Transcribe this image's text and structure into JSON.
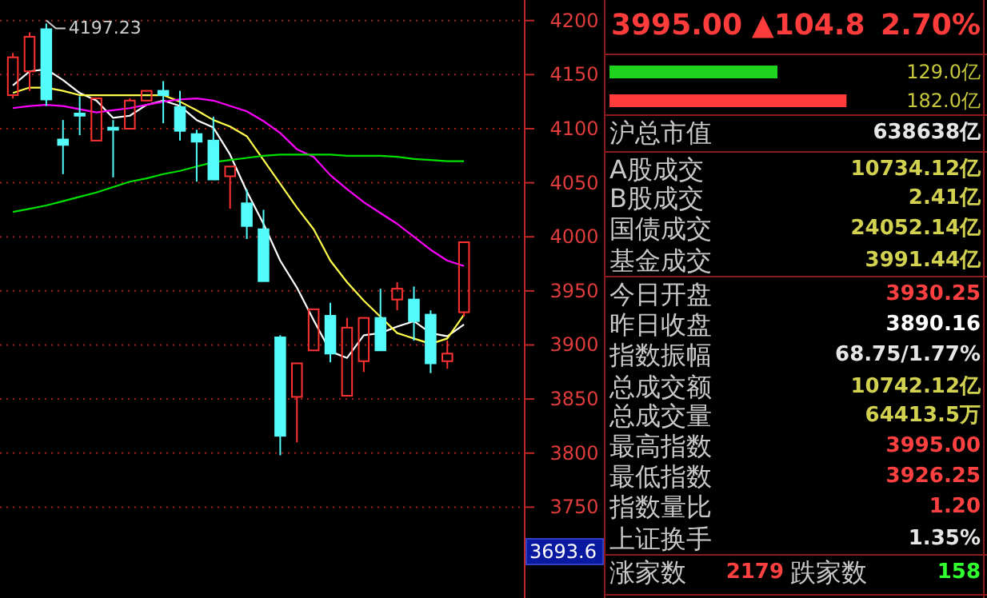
{
  "chart_data": [
    {
      "type": "candlestick",
      "categories": [
        null,
        null,
        null,
        null,
        null,
        null,
        null,
        null,
        null,
        null,
        null,
        null,
        null,
        null,
        null,
        null,
        null,
        null,
        null,
        null,
        null,
        null,
        null,
        null,
        null,
        null,
        null,
        null
      ],
      "ohlc": [
        [
          4131,
          4170,
          4128,
          4166
        ],
        [
          4153,
          4189,
          4135,
          4185
        ],
        [
          4192,
          4197.23,
          4121,
          4127
        ],
        [
          4090,
          4108,
          4058,
          4085
        ],
        [
          4114,
          4130,
          4094,
          4112
        ],
        [
          4089,
          4128,
          4089,
          4128
        ],
        [
          4101,
          4108,
          4055,
          4099
        ],
        [
          4100,
          4128,
          4100,
          4126
        ],
        [
          4126,
          4135,
          4126,
          4135
        ],
        [
          4135,
          4144,
          4105,
          4131
        ],
        [
          4120,
          4135,
          4089,
          4098
        ],
        [
          4095,
          4099,
          4051,
          4088
        ],
        [
          4089,
          4111,
          4053,
          4053
        ],
        [
          4056,
          4065,
          4026,
          4065
        ],
        [
          4031,
          4044,
          3998,
          4010
        ],
        [
          4007,
          4025,
          3959,
          3959
        ],
        [
          3907,
          3909,
          3798,
          3816
        ],
        [
          3852,
          3883,
          3810,
          3883
        ],
        [
          3895,
          3933,
          3895,
          3933
        ],
        [
          3927,
          3939,
          3884,
          3892
        ],
        [
          3853,
          3925,
          3853,
          3916
        ],
        [
          3885,
          3925,
          3875,
          3925
        ],
        [
          3925,
          3952,
          3895,
          3895
        ],
        [
          3942,
          3958,
          3932,
          3952
        ],
        [
          3942,
          3954,
          3904,
          3922
        ],
        [
          3928,
          3932,
          3874,
          3883
        ],
        [
          3885,
          3904,
          3878,
          3892
        ],
        [
          3930.25,
          3995,
          3926.25,
          3995
        ]
      ],
      "colors": [
        "#ff3232",
        "#ff3232",
        "#54fcfc",
        "#54fcfc",
        "#54fcfc",
        "#ff3232",
        "#54fcfc",
        "#ff3232",
        "#ff3232",
        "#54fcfc",
        "#54fcfc",
        "#54fcfc",
        "#54fcfc",
        "#ff3232",
        "#54fcfc",
        "#54fcfc",
        "#54fcfc",
        "#ff3232",
        "#ff3232",
        "#54fcfc",
        "#ff3232",
        "#ff3232",
        "#54fcfc",
        "#ff3232",
        "#54fcfc",
        "#54fcfc",
        "#ff3232",
        "#ff3232"
      ],
      "series": [
        {
          "type": "line",
          "color": "#ffffff",
          "values": [
            4140,
            4153,
            4155,
            4145,
            4133,
            4126,
            4110,
            4112,
            4122,
            4126,
            4121,
            4108,
            4101,
            4076,
            4042,
            4012,
            3978,
            3953,
            3923,
            3894,
            3888,
            3909,
            3911,
            3917,
            3922,
            3911,
            3908,
            3919
          ]
        },
        {
          "type": "line",
          "color": "#ffff4c",
          "values": [
            4133,
            4138,
            4138,
            4135,
            4131,
            4131,
            4131,
            4131,
            4131,
            4131,
            4125,
            4117,
            4108,
            4102,
            4093,
            4071,
            4049,
            4027,
            4007,
            3978,
            3958,
            3941,
            3926,
            3911,
            3906,
            3901,
            3906,
            3928
          ]
        },
        {
          "type": "line",
          "color": "#ff00ff",
          "values": [
            4119,
            4121,
            4122,
            4121,
            4118,
            4115,
            4117,
            4119,
            4122,
            4125,
            4127,
            4128,
            4126,
            4121,
            4116,
            4107,
            4096,
            4081,
            4074,
            4057,
            4044,
            4032,
            4022,
            4012,
            4000,
            3988,
            3978,
            3973
          ]
        },
        {
          "type": "line",
          "color": "#00e000",
          "values": [
            4023,
            4026,
            4029,
            4033,
            4037,
            4041,
            4046,
            4051,
            4054,
            4058,
            4061,
            4065,
            4069,
            4071,
            4073,
            4075,
            4076,
            4076,
            4076,
            4076,
            4075,
            4075,
            4075,
            4074,
            4072,
            4071,
            4070,
            4070
          ]
        }
      ],
      "ylim": [
        3666,
        4219
      ],
      "yticks": [
        3750,
        3800,
        3850,
        3900,
        3950,
        4000,
        4050,
        4100,
        4150,
        4200
      ],
      "grid": "y",
      "tick_labels": "y",
      "annotations": [
        "4197.23",
        "3693.6"
      ]
    },
    {
      "type": "bar",
      "orientation": "horizontal",
      "title": "3995.00 ▲104.8 2.70%",
      "categories": [
        null,
        null
      ],
      "values": [
        129.0,
        182.0
      ],
      "colors": [
        "#1ed21e",
        "#ff3c3c"
      ],
      "value_labels": [
        "129.0亿",
        "182.0亿"
      ]
    },
    {
      "type": "other",
      "annotations": [
        "沪总市值",
        "638638亿",
        "A股成交",
        "10734.12亿",
        "B股成交",
        "2.41亿",
        "国债成交",
        "24052.14亿",
        "基金成交",
        "3991.44亿",
        "今日开盘",
        "3930.25",
        "昨日收盘",
        "3890.16",
        "指数振幅",
        "68.75/1.77%",
        "总成交额",
        "10742.12亿",
        "总成交量",
        "64413.5万",
        "最高指数",
        "3995.00",
        "最低指数",
        "3926.25",
        "指数量比",
        "1.20",
        "上证换手",
        "1.35%",
        "涨家数",
        "2179",
        "跌家数",
        "158"
      ],
      "colors": [
        "#c8c8c8",
        "#e6e6e6",
        "#c8c8c8",
        "#d2d250",
        "#c8c8c8",
        "#d2d250",
        "#c8c8c8",
        "#d2d250",
        "#c8c8c8",
        "#d2d250",
        "#c8c8c8",
        "#ff4040",
        "#c8c8c8",
        "#ffffff",
        "#c8c8c8",
        "#e6e6e6",
        "#c8c8c8",
        "#d2d250",
        "#c8c8c8",
        "#d2d250",
        "#c8c8c8",
        "#ff4040",
        "#c8c8c8",
        "#ff4040",
        "#c8c8c8",
        "#ff4040",
        "#c8c8c8",
        "#e6e6e6",
        "#c8c8c8",
        "#ff4040",
        "#c8c8c8",
        "#30ff30"
      ]
    }
  ]
}
